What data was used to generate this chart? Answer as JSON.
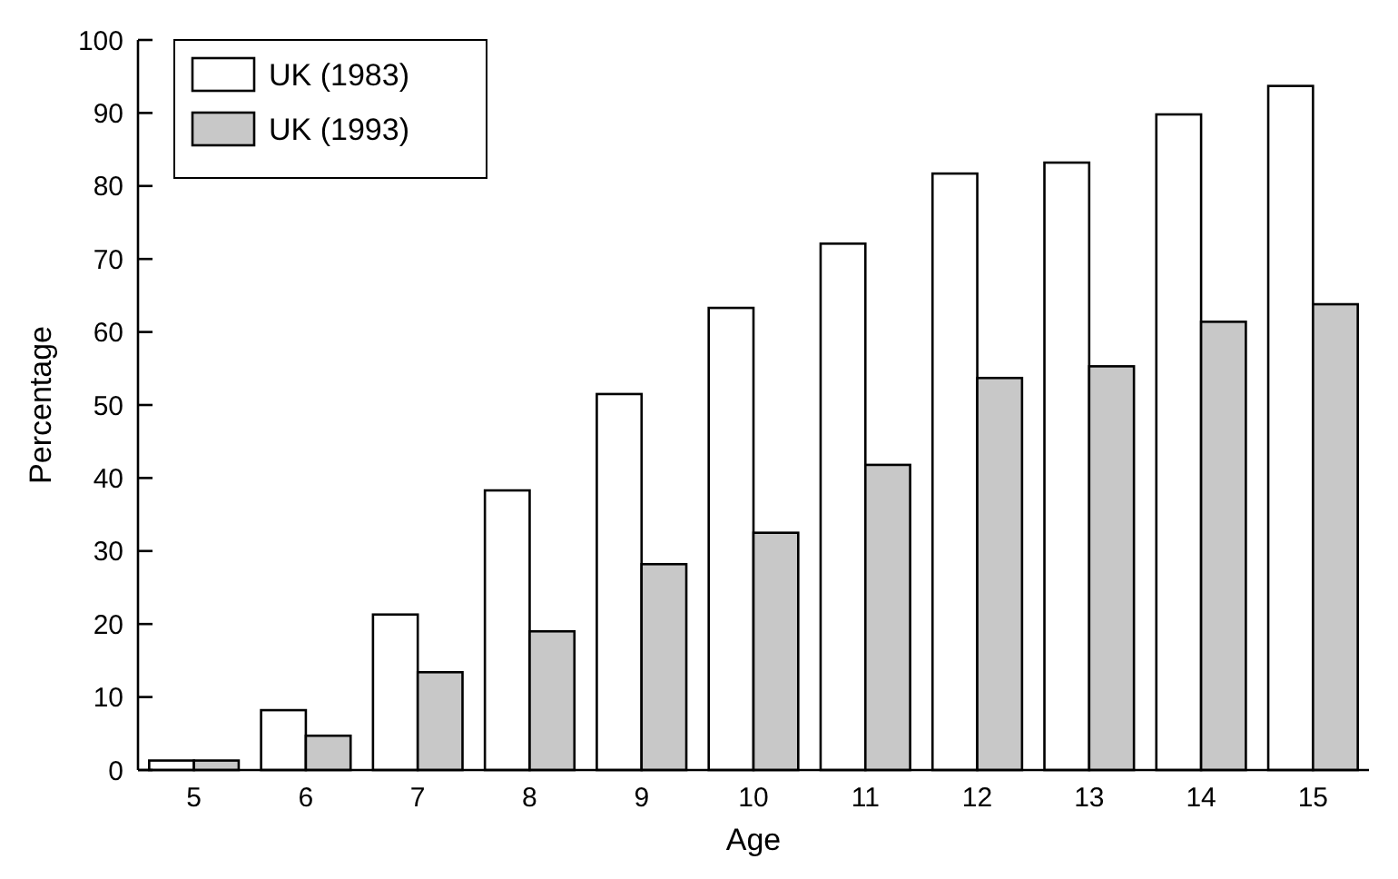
{
  "chart_data": {
    "type": "bar",
    "xlabel": "Age",
    "ylabel": "Percentage",
    "categories": [
      "5",
      "6",
      "7",
      "8",
      "9",
      "10",
      "11",
      "12",
      "13",
      "14",
      "15"
    ],
    "series": [
      {
        "name": "UK (1983)",
        "color": "#ffffff",
        "values": [
          1.3,
          8.2,
          21.3,
          38.3,
          51.5,
          63.3,
          72.1,
          81.7,
          83.2,
          89.8,
          93.7
        ]
      },
      {
        "name": "UK (1993)",
        "color": "#c8c8c8",
        "values": [
          1.3,
          4.7,
          13.4,
          19,
          28.2,
          32.5,
          41.8,
          53.7,
          55.3,
          61.4,
          63.8
        ]
      }
    ],
    "ylim": [
      0,
      100
    ],
    "yticks": [
      0,
      10,
      20,
      30,
      40,
      50,
      60,
      70,
      80,
      90,
      100
    ],
    "grid": false,
    "legend": "top left"
  }
}
